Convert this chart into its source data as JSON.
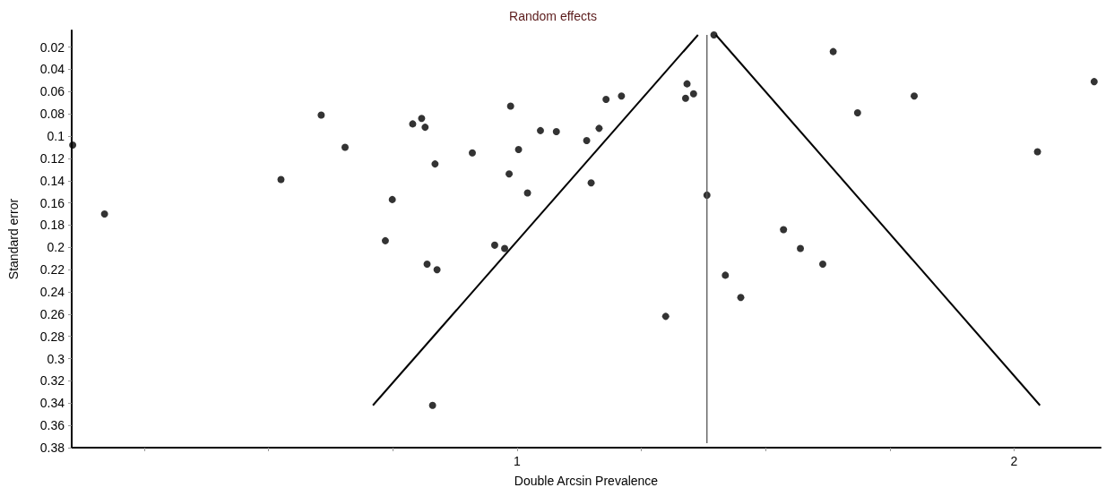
{
  "chart_data": {
    "type": "scatter",
    "title": "Random effects",
    "xlabel": "Double Arcsin Prevalence",
    "ylabel": "Standard error",
    "xlim": [
      0.104,
      2.174
    ],
    "xticks": [
      {
        "value": 0.25,
        "label": null
      },
      {
        "value": 0.5,
        "label": null
      },
      {
        "value": 0.75,
        "label": null
      },
      1,
      {
        "value": 1.25,
        "label": null
      },
      {
        "value": 1.5,
        "label": null
      },
      {
        "value": 1.75,
        "label": null
      },
      2
    ],
    "ylim": [
      0.38,
      0.005
    ],
    "yticks": [
      0.02,
      0.04,
      0.06,
      0.08,
      0.1,
      0.12,
      0.14,
      0.16,
      0.18,
      0.2,
      0.22,
      0.24,
      0.26,
      0.28,
      0.3,
      0.32,
      0.34,
      0.36,
      0.38
    ],
    "grid": false,
    "marker": "circle",
    "series": [
      {
        "color": "#000000",
        "x": [
          0.106,
          0.17,
          0.525,
          0.606,
          0.654,
          0.79,
          0.808,
          0.815,
          0.835,
          0.749,
          0.735,
          0.955,
          0.975,
          0.91,
          0.987,
          1.003,
          0.984,
          1.021,
          1.047,
          1.079,
          1.14,
          1.165,
          1.149,
          1.179,
          1.21,
          1.342,
          1.339,
          1.355,
          1.396,
          1.382,
          0.819,
          0.839,
          0.83,
          1.299,
          1.419,
          1.636,
          1.685,
          1.799,
          2.047,
          2.161,
          1.536,
          1.57,
          1.615,
          1.45
        ],
        "values": [
          0.108,
          0.17,
          0.139,
          0.081,
          0.11,
          0.089,
          0.084,
          0.092,
          0.125,
          0.157,
          0.194,
          0.198,
          0.201,
          0.115,
          0.073,
          0.112,
          0.134,
          0.151,
          0.095,
          0.096,
          0.104,
          0.093,
          0.142,
          0.067,
          0.064,
          0.053,
          0.066,
          0.062,
          0.009,
          0.153,
          0.215,
          0.22,
          0.342,
          0.262,
          0.225,
          0.024,
          0.079,
          0.064,
          0.114,
          0.051,
          0.184,
          0.201,
          0.215,
          0.245
        ]
      },
      {
        "type": "line",
        "marker": "none",
        "line_style": "solid",
        "color": "#000000",
        "x": [
          0.71,
          1.364
        ],
        "values": [
          0.342,
          0.009
        ]
      },
      {
        "type": "line",
        "marker": "none",
        "line_style": "solid",
        "color": "#000000",
        "x": [
          1.4,
          2.052
        ],
        "values": [
          0.009,
          0.342
        ]
      },
      {
        "type": "line",
        "marker": "none",
        "line_style": "solid",
        "color": "#555555",
        "x": [
          1.382,
          1.382
        ],
        "values": [
          0.009,
          0.376
        ]
      }
    ]
  }
}
